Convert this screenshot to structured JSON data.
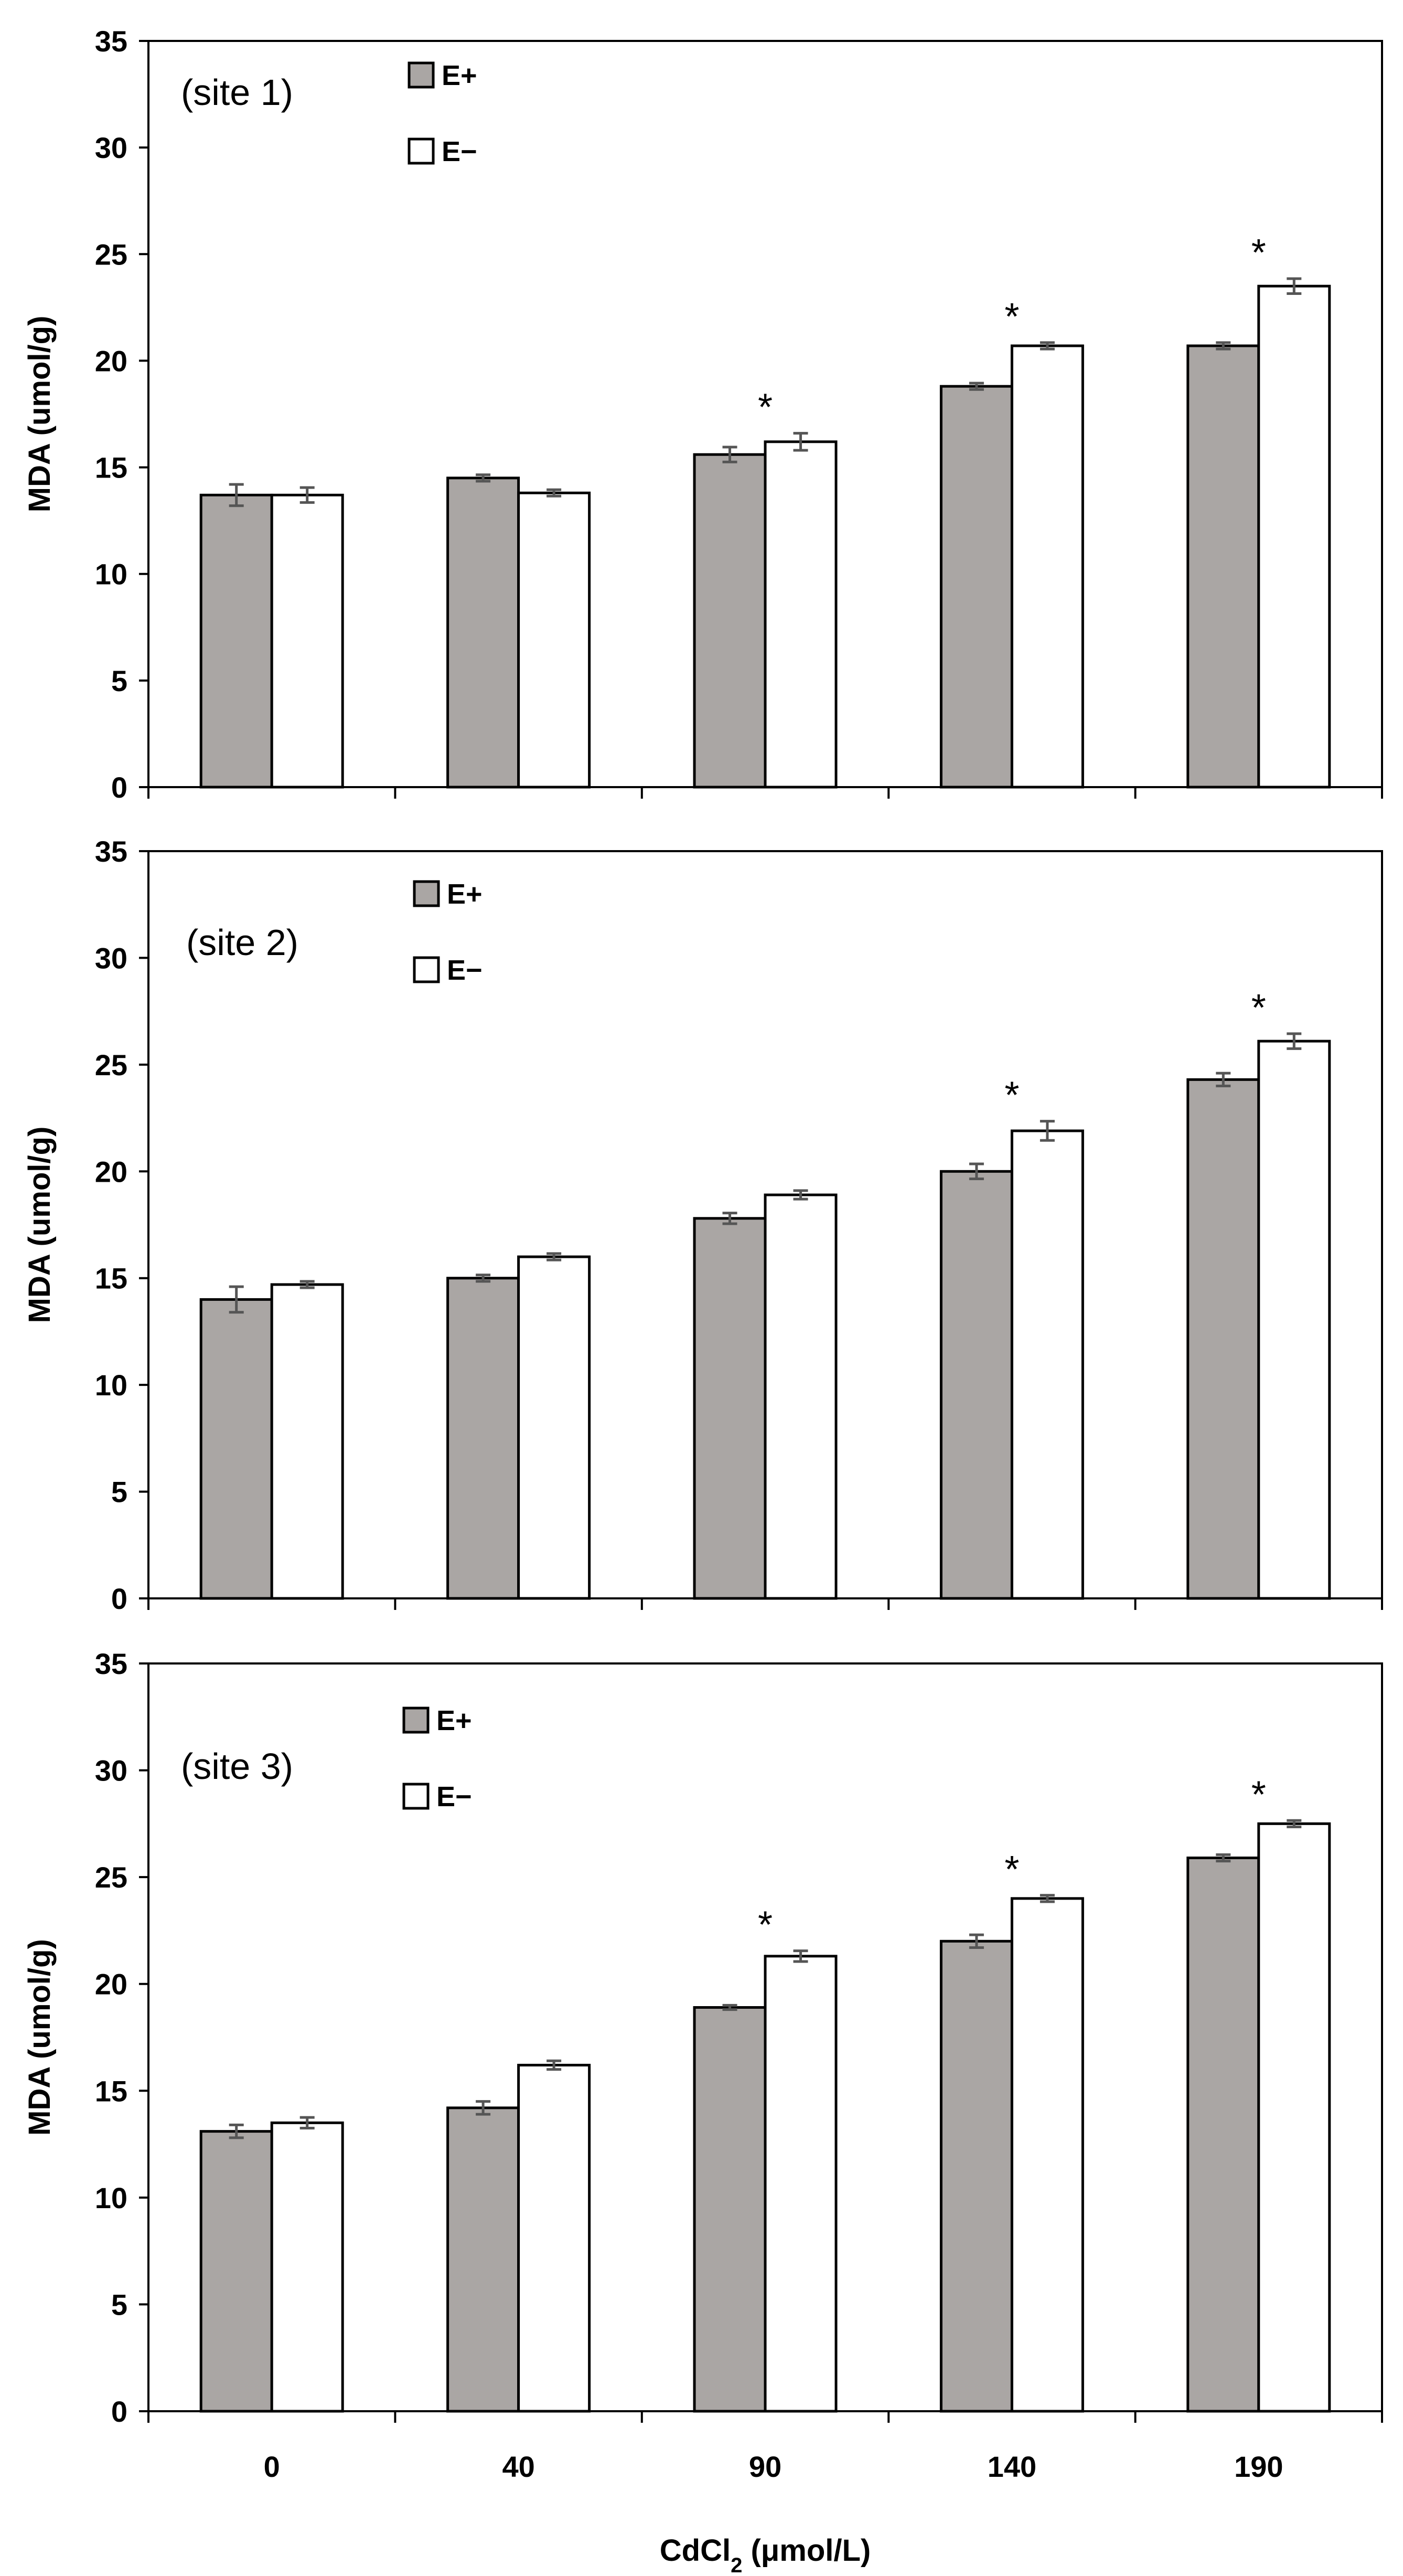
{
  "chart_data": {
    "type": "bar",
    "categories": [
      "0",
      "40",
      "90",
      "140",
      "190"
    ],
    "xlabel": "CdCl2 (μmol/L)",
    "xlabel_parts": {
      "main": "CdCl",
      "sub": "2",
      "rest": " (μmol/L)"
    },
    "ylabel": "MDA (umol/g)",
    "ylim": [
      0,
      35
    ],
    "yticks": [
      0,
      5,
      10,
      15,
      20,
      25,
      30,
      35
    ],
    "legend": [
      "E+",
      "E−"
    ],
    "series_colors": {
      "E+": "#aaa6a4",
      "E−": "#ffffff"
    },
    "panels": [
      {
        "label": "(site 1)",
        "series": [
          {
            "name": "E+",
            "values": [
              13.7,
              14.5,
              15.6,
              18.8,
              20.7
            ],
            "errors": [
              0.5,
              0.15,
              0.35,
              0.15,
              0.15
            ]
          },
          {
            "name": "E−",
            "values": [
              13.7,
              13.8,
              16.2,
              20.7,
              23.5
            ],
            "errors": [
              0.35,
              0.15,
              0.4,
              0.15,
              0.35
            ]
          }
        ],
        "significance": [
          "",
          "",
          "*",
          "*",
          "*"
        ]
      },
      {
        "label": "(site 2)",
        "series": [
          {
            "name": "E+",
            "values": [
              14.0,
              15.0,
              17.8,
              20.0,
              24.3
            ],
            "errors": [
              0.6,
              0.15,
              0.25,
              0.35,
              0.3
            ]
          },
          {
            "name": "E−",
            "values": [
              14.7,
              16.0,
              18.9,
              21.9,
              26.1
            ],
            "errors": [
              0.15,
              0.15,
              0.2,
              0.45,
              0.35
            ]
          }
        ],
        "significance": [
          "",
          "",
          "",
          "*",
          "*"
        ]
      },
      {
        "label": "(site 3)",
        "series": [
          {
            "name": "E+",
            "values": [
              13.1,
              14.2,
              18.9,
              22.0,
              25.9
            ],
            "errors": [
              0.3,
              0.3,
              0.1,
              0.3,
              0.15
            ]
          },
          {
            "name": "E−",
            "values": [
              13.5,
              16.2,
              21.3,
              24.0,
              27.5
            ],
            "errors": [
              0.25,
              0.2,
              0.25,
              0.15,
              0.15
            ]
          }
        ],
        "significance": [
          "",
          "",
          "*",
          "*",
          "*"
        ]
      }
    ]
  }
}
